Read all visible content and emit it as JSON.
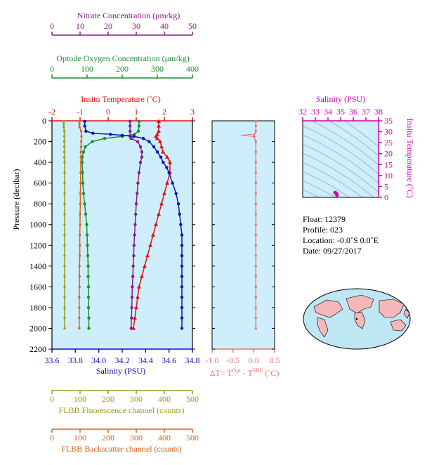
{
  "colors": {
    "nitrate": "#8b1a8b",
    "oxygen": "#1f8f2e",
    "temperature": "#e01010",
    "salinity": "#1010c0",
    "fluorescence": "#9a9a20",
    "backscatter": "#d8641a",
    "delta_t": "#f07070",
    "panel_bg": "#cdeefa",
    "ts_magenta": "#d000b0",
    "axis": "#000000",
    "land": "#f4b8b8",
    "ocean": "#bfe6f3"
  },
  "axes_text": {
    "nitrate_label": "Nitrate Concentration (μm/kg)",
    "oxygen_label": "Optode Oxygen Concentration (μm/kg)",
    "temperature_label": "Insitu Temperature (˚C)",
    "salinity_label": "Salinity (PSU)",
    "pressure_label": "Pressure (decibar)",
    "fluorescence_label": "FLBB Fluorescence channel (counts)",
    "backscatter_label": "FLBB Backscatter channel (counts)",
    "delta_label_prefix": "ΔT= T",
    "delta_label_sup1": "Opt",
    "delta_label_mid": " - T",
    "delta_label_sup2": "SBE",
    "delta_label_suffix": " (˚C)",
    "ts_top_label": "Salinity (PSU)",
    "ts_right_label": "Insitu Temperature (˚C)"
  },
  "info": {
    "float": "Float:  12379",
    "profile": "Profile:  023",
    "location": "Location:  -0.0˚S   0.0˚E",
    "date": "Date:  09/27/2017"
  },
  "chart_data": [
    {
      "type": "line",
      "panel": "profiles",
      "ylabel": "Pressure (decibar)",
      "ylim": [
        2200,
        0
      ],
      "yticks": [
        0,
        200,
        400,
        600,
        800,
        1000,
        1200,
        1400,
        1600,
        1800,
        2000,
        2200
      ],
      "axes": {
        "nitrate": {
          "lim": [
            0,
            50
          ],
          "ticks": [
            0,
            10,
            20,
            30,
            40,
            50
          ]
        },
        "oxygen": {
          "lim": [
            0,
            400
          ],
          "ticks": [
            0,
            100,
            200,
            300,
            400
          ]
        },
        "temperature": {
          "lim": [
            -2,
            3
          ],
          "ticks": [
            -2,
            -1,
            0,
            1,
            2,
            3
          ]
        },
        "salinity": {
          "lim": [
            33.6,
            34.8
          ],
          "ticks": [
            33.6,
            33.8,
            34.0,
            34.2,
            34.4,
            34.6,
            34.8
          ]
        },
        "fluorescence": {
          "lim": [
            0,
            500
          ],
          "ticks": [
            0,
            100,
            200,
            300,
            400,
            500
          ]
        },
        "backscatter": {
          "lim": [
            0,
            500
          ],
          "ticks": [
            0,
            100,
            200,
            300,
            400,
            500
          ]
        }
      },
      "series": [
        {
          "name": "Nitrate Concentration",
          "axis": "nitrate",
          "pressure": [
            5,
            50,
            100,
            150,
            170,
            200,
            250,
            300,
            350,
            400,
            500,
            600,
            700,
            800,
            900,
            1000,
            1100,
            1200,
            1300,
            1400,
            1500,
            1600,
            1700,
            1800,
            1900,
            2000
          ],
          "values": [
            27.8,
            27.8,
            27.8,
            27.8,
            28.2,
            30.5,
            31.5,
            32,
            32,
            31.5,
            31,
            30.6,
            30.3,
            30,
            29.8,
            29.6,
            29.4,
            29.2,
            29.1,
            28.9,
            28.8,
            28.6,
            28.5,
            28.4,
            28.3,
            28.2
          ]
        },
        {
          "name": "Optode Oxygen Concentration",
          "axis": "oxygen",
          "pressure": [
            5,
            50,
            100,
            130,
            150,
            170,
            200,
            250,
            300,
            350,
            400,
            500,
            600,
            700,
            800,
            900,
            1000,
            1100,
            1200,
            1300,
            1400,
            1500,
            1600,
            1700,
            1800,
            1900,
            2000
          ],
          "values": [
            248,
            248,
            246,
            235,
            200,
            150,
            115,
            95,
            90,
            86,
            86,
            87,
            88,
            90,
            93,
            96,
            99,
            100,
            101,
            102,
            103,
            103,
            104,
            104,
            104,
            105,
            105
          ]
        },
        {
          "name": "Insitu Temperature",
          "axis": "temperature",
          "pressure": [
            5,
            50,
            100,
            130,
            150,
            170,
            200,
            250,
            300,
            350,
            400,
            500,
            600,
            700,
            800,
            900,
            1000,
            1100,
            1200,
            1300,
            1400,
            1500,
            1600,
            1700,
            1800,
            1900,
            2000
          ],
          "values": [
            1.8,
            1.8,
            1.8,
            1.75,
            1.7,
            1.75,
            1.85,
            1.9,
            1.95,
            2.1,
            2.2,
            2.2,
            2.1,
            2.0,
            1.9,
            1.8,
            1.7,
            1.6,
            1.5,
            1.4,
            1.3,
            1.2,
            1.1,
            1.05,
            1.0,
            0.95,
            0.9
          ]
        },
        {
          "name": "Salinity",
          "axis": "salinity",
          "pressure": [
            5,
            50,
            100,
            120,
            130,
            140,
            150,
            170,
            200,
            250,
            300,
            350,
            400,
            450,
            500,
            600,
            700,
            800,
            900,
            1000,
            1100,
            1200,
            1300,
            1400,
            1500,
            1600,
            1700,
            1800,
            1900,
            2000
          ],
          "values": [
            33.88,
            33.88,
            33.89,
            33.95,
            34.1,
            34.2,
            34.3,
            34.38,
            34.43,
            34.47,
            34.5,
            34.53,
            34.55,
            34.58,
            34.6,
            34.63,
            34.66,
            34.68,
            34.69,
            34.7,
            34.71,
            34.71,
            34.71,
            34.71,
            34.71,
            34.71,
            34.71,
            34.71,
            34.71,
            34.71
          ]
        },
        {
          "name": "FLBB Fluorescence channel",
          "axis": "fluorescence",
          "pressure": [
            5,
            30,
            60,
            100,
            150,
            200,
            250,
            300,
            350,
            400,
            500,
            600,
            700,
            800,
            900,
            1000,
            1100,
            1200,
            1300,
            1400,
            1500,
            1600,
            1700,
            1800,
            1900,
            2000
          ],
          "values": [
            42,
            42,
            42,
            44,
            44,
            44,
            44,
            44,
            44,
            45,
            45,
            45,
            45,
            45,
            45,
            45,
            45,
            45,
            45,
            45,
            45,
            45,
            45,
            45,
            45,
            45
          ]
        },
        {
          "name": "FLBB Backscatter channel",
          "axis": "backscatter",
          "pressure": [
            5,
            30,
            60,
            100,
            150,
            200,
            250,
            300,
            350,
            400,
            500,
            600,
            700,
            800,
            900,
            1000,
            1100,
            1200,
            1300,
            1400,
            1500,
            1600,
            1700,
            1800,
            1900,
            2000
          ],
          "values": [
            98,
            98,
            98,
            104,
            105,
            104,
            104,
            103,
            103,
            103,
            102,
            102,
            101,
            101,
            100,
            100,
            99,
            99,
            99,
            98,
            98,
            98,
            97,
            97,
            97,
            97
          ]
        }
      ]
    },
    {
      "type": "line",
      "panel": "delta_t",
      "xlim": [
        -1.0,
        0.5
      ],
      "xticks": [
        -1.0,
        -0.5,
        0.0,
        0.5
      ],
      "ylim": [
        2200,
        0
      ],
      "pressure": [
        5,
        50,
        100,
        150,
        200,
        300,
        400,
        500,
        600,
        700,
        800,
        900,
        1000,
        1100,
        1200,
        1300,
        1400,
        1500,
        1600,
        1700,
        1800,
        1900,
        2000
      ],
      "values": [
        0.05,
        0.05,
        0.05,
        0.0,
        0.05,
        0.05,
        0.05,
        0.05,
        0.05,
        0.05,
        0.05,
        0.05,
        0.05,
        0.05,
        0.05,
        0.05,
        0.05,
        0.05,
        0.05,
        0.05,
        0.05,
        0.05,
        0.05
      ],
      "spike": {
        "pressure": 140,
        "value": -0.1
      }
    },
    {
      "type": "scatter",
      "panel": "ts_diagram",
      "xlim": [
        32,
        38
      ],
      "xticks": [
        32,
        33,
        34,
        35,
        36,
        37,
        38
      ],
      "ylim": [
        0,
        35
      ],
      "yticks": [
        0,
        5,
        10,
        15,
        20,
        25,
        30,
        35
      ],
      "salinity": [
        34.55,
        34.6,
        34.65,
        34.68,
        34.7,
        34.71,
        34.71,
        34.71
      ],
      "temperature": [
        2.2,
        2.1,
        1.9,
        1.7,
        1.5,
        1.3,
        1.1,
        0.9
      ]
    }
  ]
}
